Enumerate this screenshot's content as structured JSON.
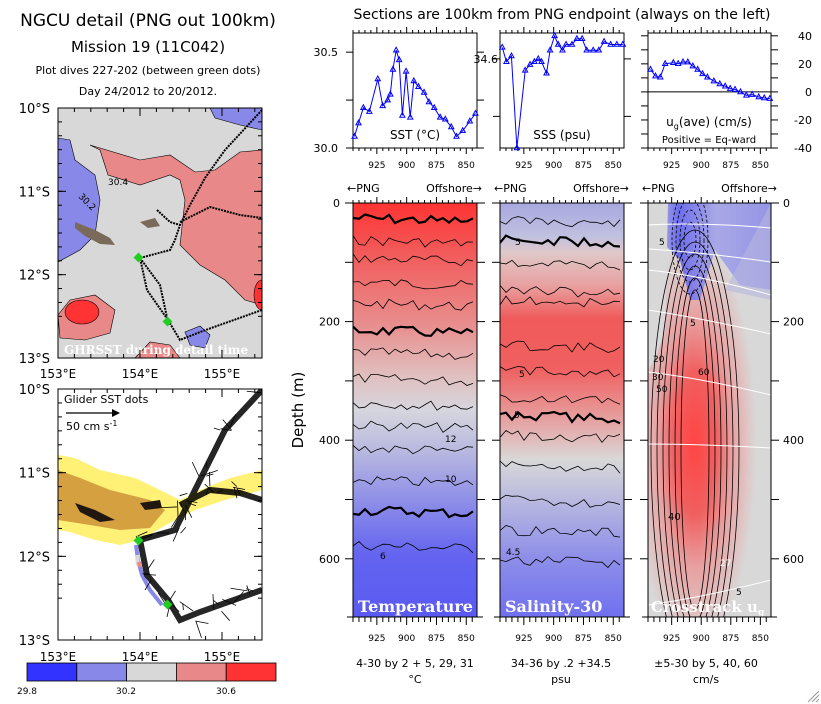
{
  "left_header": {
    "title": "NGCU detail (PNG out 100km)",
    "mission": "Mission 19 (11C042)",
    "dives": "Plot dives 227-202 (between green dots)",
    "days": "Day 24/2012 to 20/2012."
  },
  "right_header": {
    "title": "Sections are 100km from PNG endpoint (always on the left)"
  },
  "maps": {
    "lat_labels": [
      "10°S",
      "11°S",
      "12°S",
      "13°S"
    ],
    "lon_labels": [
      "153°E",
      "154°E",
      "155°E"
    ],
    "top_map": {
      "caption": "GHRSST during detail time",
      "contour_labels": [
        "30.4",
        "30.2"
      ]
    },
    "bottom_map": {
      "caption": "Glider SST dots",
      "scale_label": "50 cm s",
      "scale_exp": "-1"
    },
    "colorbar": {
      "labels": [
        "29.8",
        "30.2",
        "30.6"
      ],
      "colors": [
        "#3333ff",
        "#8888e8",
        "#d8d8d8",
        "#e88888",
        "#ff3333"
      ]
    }
  },
  "direction_labels": {
    "left": "←PNG",
    "right": "Offshore→"
  },
  "sections": {
    "ylabel": "Depth (m)",
    "depth_ticks": [
      "0",
      "200",
      "400",
      "600"
    ],
    "x_ticks": [
      "925",
      "900",
      "875",
      "850"
    ],
    "panels": [
      {
        "name": "Temperature",
        "caption_line1": "4-30 by 2 + 5, 29, 31",
        "caption_line2": "°C",
        "contour_labels": [
          "12",
          "10",
          "6"
        ]
      },
      {
        "name": "Salinity-30",
        "caption_line1": "34-36 by .2 +34.5",
        "caption_line2": "psu",
        "contour_labels": [
          "5",
          "5",
          "5",
          "4.5"
        ]
      },
      {
        "name": "Crosstrack u",
        "name_sub": "g",
        "caption_line1": "±5-30 by 5, 40, 60",
        "caption_line2": "cm/s",
        "contour_labels": [
          "5",
          "5",
          "20",
          "30",
          "50",
          "60",
          "40",
          "27",
          "5"
        ]
      }
    ]
  },
  "chart_data": [
    {
      "type": "line",
      "title": "SST (°C)",
      "xlim": [
        945,
        841
      ],
      "ylim": [
        30.0,
        30.6
      ],
      "x_ticks": [
        925,
        900,
        875,
        850
      ],
      "y_tick_labels": [
        "30.0",
        "30.5"
      ],
      "color": "#0000ff",
      "x": [
        943.7,
        940.4,
        936.3,
        931.3,
        924.2,
        920.1,
        915.9,
        913.7,
        911.5,
        908.8,
        906.3,
        903.6,
        900.5,
        897.0,
        894.0,
        890.1,
        885.4,
        881.3,
        876.9,
        871.9,
        867.6,
        862.6,
        858.2,
        853.0,
        847.0,
        842.3
      ],
      "y": [
        30.06,
        30.13,
        30.21,
        30.19,
        30.36,
        30.22,
        30.25,
        30.28,
        30.41,
        30.51,
        30.46,
        30.17,
        30.4,
        30.16,
        30.35,
        30.32,
        30.29,
        30.24,
        30.21,
        30.16,
        30.15,
        30.11,
        30.06,
        30.09,
        30.14,
        30.18
      ]
    },
    {
      "type": "line",
      "title": "SSS (psu)",
      "xlim": [
        945,
        841
      ],
      "ylim": [
        34.29,
        34.69
      ],
      "x_ticks": [
        925,
        900,
        875,
        850
      ],
      "y_tick_labels": [
        "34.6"
      ],
      "color": "#0000ff",
      "x": [
        943.1,
        939.6,
        935.4,
        930.8,
        923.9,
        919.8,
        916.2,
        912.9,
        910.2,
        906.0,
        903.0,
        899.2,
        896.2,
        892.6,
        889.6,
        884.6,
        880.5,
        876.1,
        872.3,
        866.8,
        862.1,
        857.7,
        852.2,
        847.0,
        842.0
      ],
      "y": [
        34.64,
        34.59,
        34.61,
        34.29,
        34.56,
        34.58,
        34.59,
        34.6,
        34.59,
        34.55,
        34.63,
        34.68,
        34.65,
        34.63,
        34.65,
        34.65,
        34.67,
        34.67,
        34.63,
        34.63,
        34.63,
        34.66,
        34.65,
        34.65,
        34.65
      ]
    },
    {
      "type": "line",
      "title": "u",
      "title_sub": "g",
      "title_rest": "(ave) (cm/s)",
      "note": "Positive = Eq-ward",
      "xlim": [
        945,
        841
      ],
      "ylim": [
        -40,
        42
      ],
      "x_ticks": [
        925,
        900,
        875,
        850
      ],
      "y_tick_labels": [
        "40",
        "20",
        "0",
        "-20",
        "-40"
      ],
      "zero_line": true,
      "color": "#0000ff",
      "x": [
        942.9,
        938.7,
        934.6,
        930.5,
        923.6,
        919.5,
        915.4,
        911.3,
        907.1,
        903.0,
        898.9,
        894.8,
        889.3,
        884.3,
        879.7,
        875.5,
        871.4,
        866.8,
        861.8,
        856.9,
        851.4,
        846.7,
        842.0
      ],
      "y": [
        16.0,
        11.3,
        10.5,
        20.1,
        20.8,
        20.1,
        21.3,
        21.3,
        18.4,
        16.0,
        12.9,
        10.5,
        7.7,
        5.7,
        4.1,
        2.4,
        1.7,
        0.0,
        -2.4,
        -1.9,
        -3.6,
        -4.3,
        -4.8
      ]
    }
  ]
}
